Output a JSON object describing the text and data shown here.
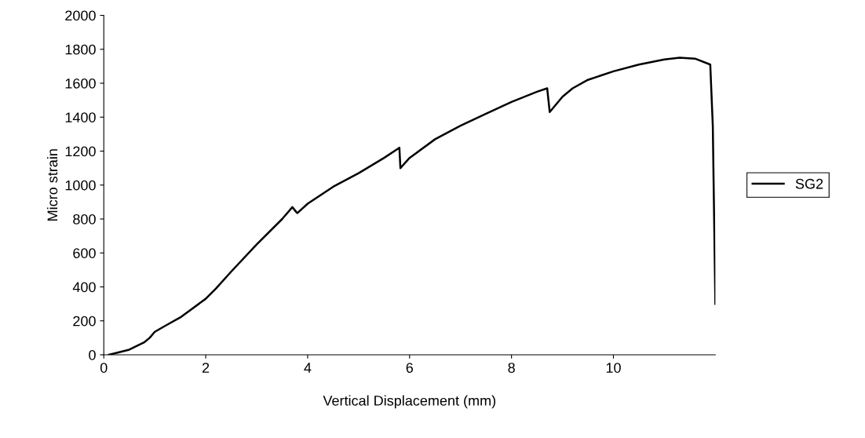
{
  "chart_data": {
    "type": "line",
    "xlabel": "Vertical Displacement (mm)",
    "ylabel": "Micro strain",
    "xlim": [
      0,
      12
    ],
    "xticks": [
      0,
      2,
      4,
      6,
      8,
      10
    ],
    "ylim": [
      0,
      2000
    ],
    "yticks": [
      0,
      200,
      400,
      600,
      800,
      1000,
      1200,
      1400,
      1600,
      1800,
      2000
    ],
    "grid": false,
    "legend": "right",
    "marker": "none",
    "line_style": "solid",
    "series": [
      {
        "name": "SG2",
        "color": "#000000",
        "x": [
          0.1,
          0.3,
          0.5,
          0.8,
          0.9,
          1.0,
          1.2,
          1.5,
          2.0,
          2.2,
          2.5,
          3.0,
          3.5,
          3.7,
          3.78,
          3.8,
          4.0,
          4.5,
          5.0,
          5.5,
          5.8,
          5.82,
          6.0,
          6.5,
          7.0,
          7.5,
          8.0,
          8.5,
          8.7,
          8.75,
          9.0,
          9.2,
          9.5,
          10.0,
          10.5,
          11.0,
          11.3,
          11.6,
          11.9,
          11.95,
          12.0
        ],
        "values": [
          0,
          15,
          30,
          75,
          100,
          135,
          170,
          220,
          330,
          390,
          490,
          650,
          800,
          870,
          840,
          835,
          890,
          990,
          1070,
          1160,
          1220,
          1100,
          1160,
          1270,
          1350,
          1420,
          1490,
          1550,
          1570,
          1430,
          1520,
          1570,
          1620,
          1670,
          1710,
          1740,
          1750,
          1745,
          1710,
          1350,
          300
        ]
      }
    ]
  }
}
